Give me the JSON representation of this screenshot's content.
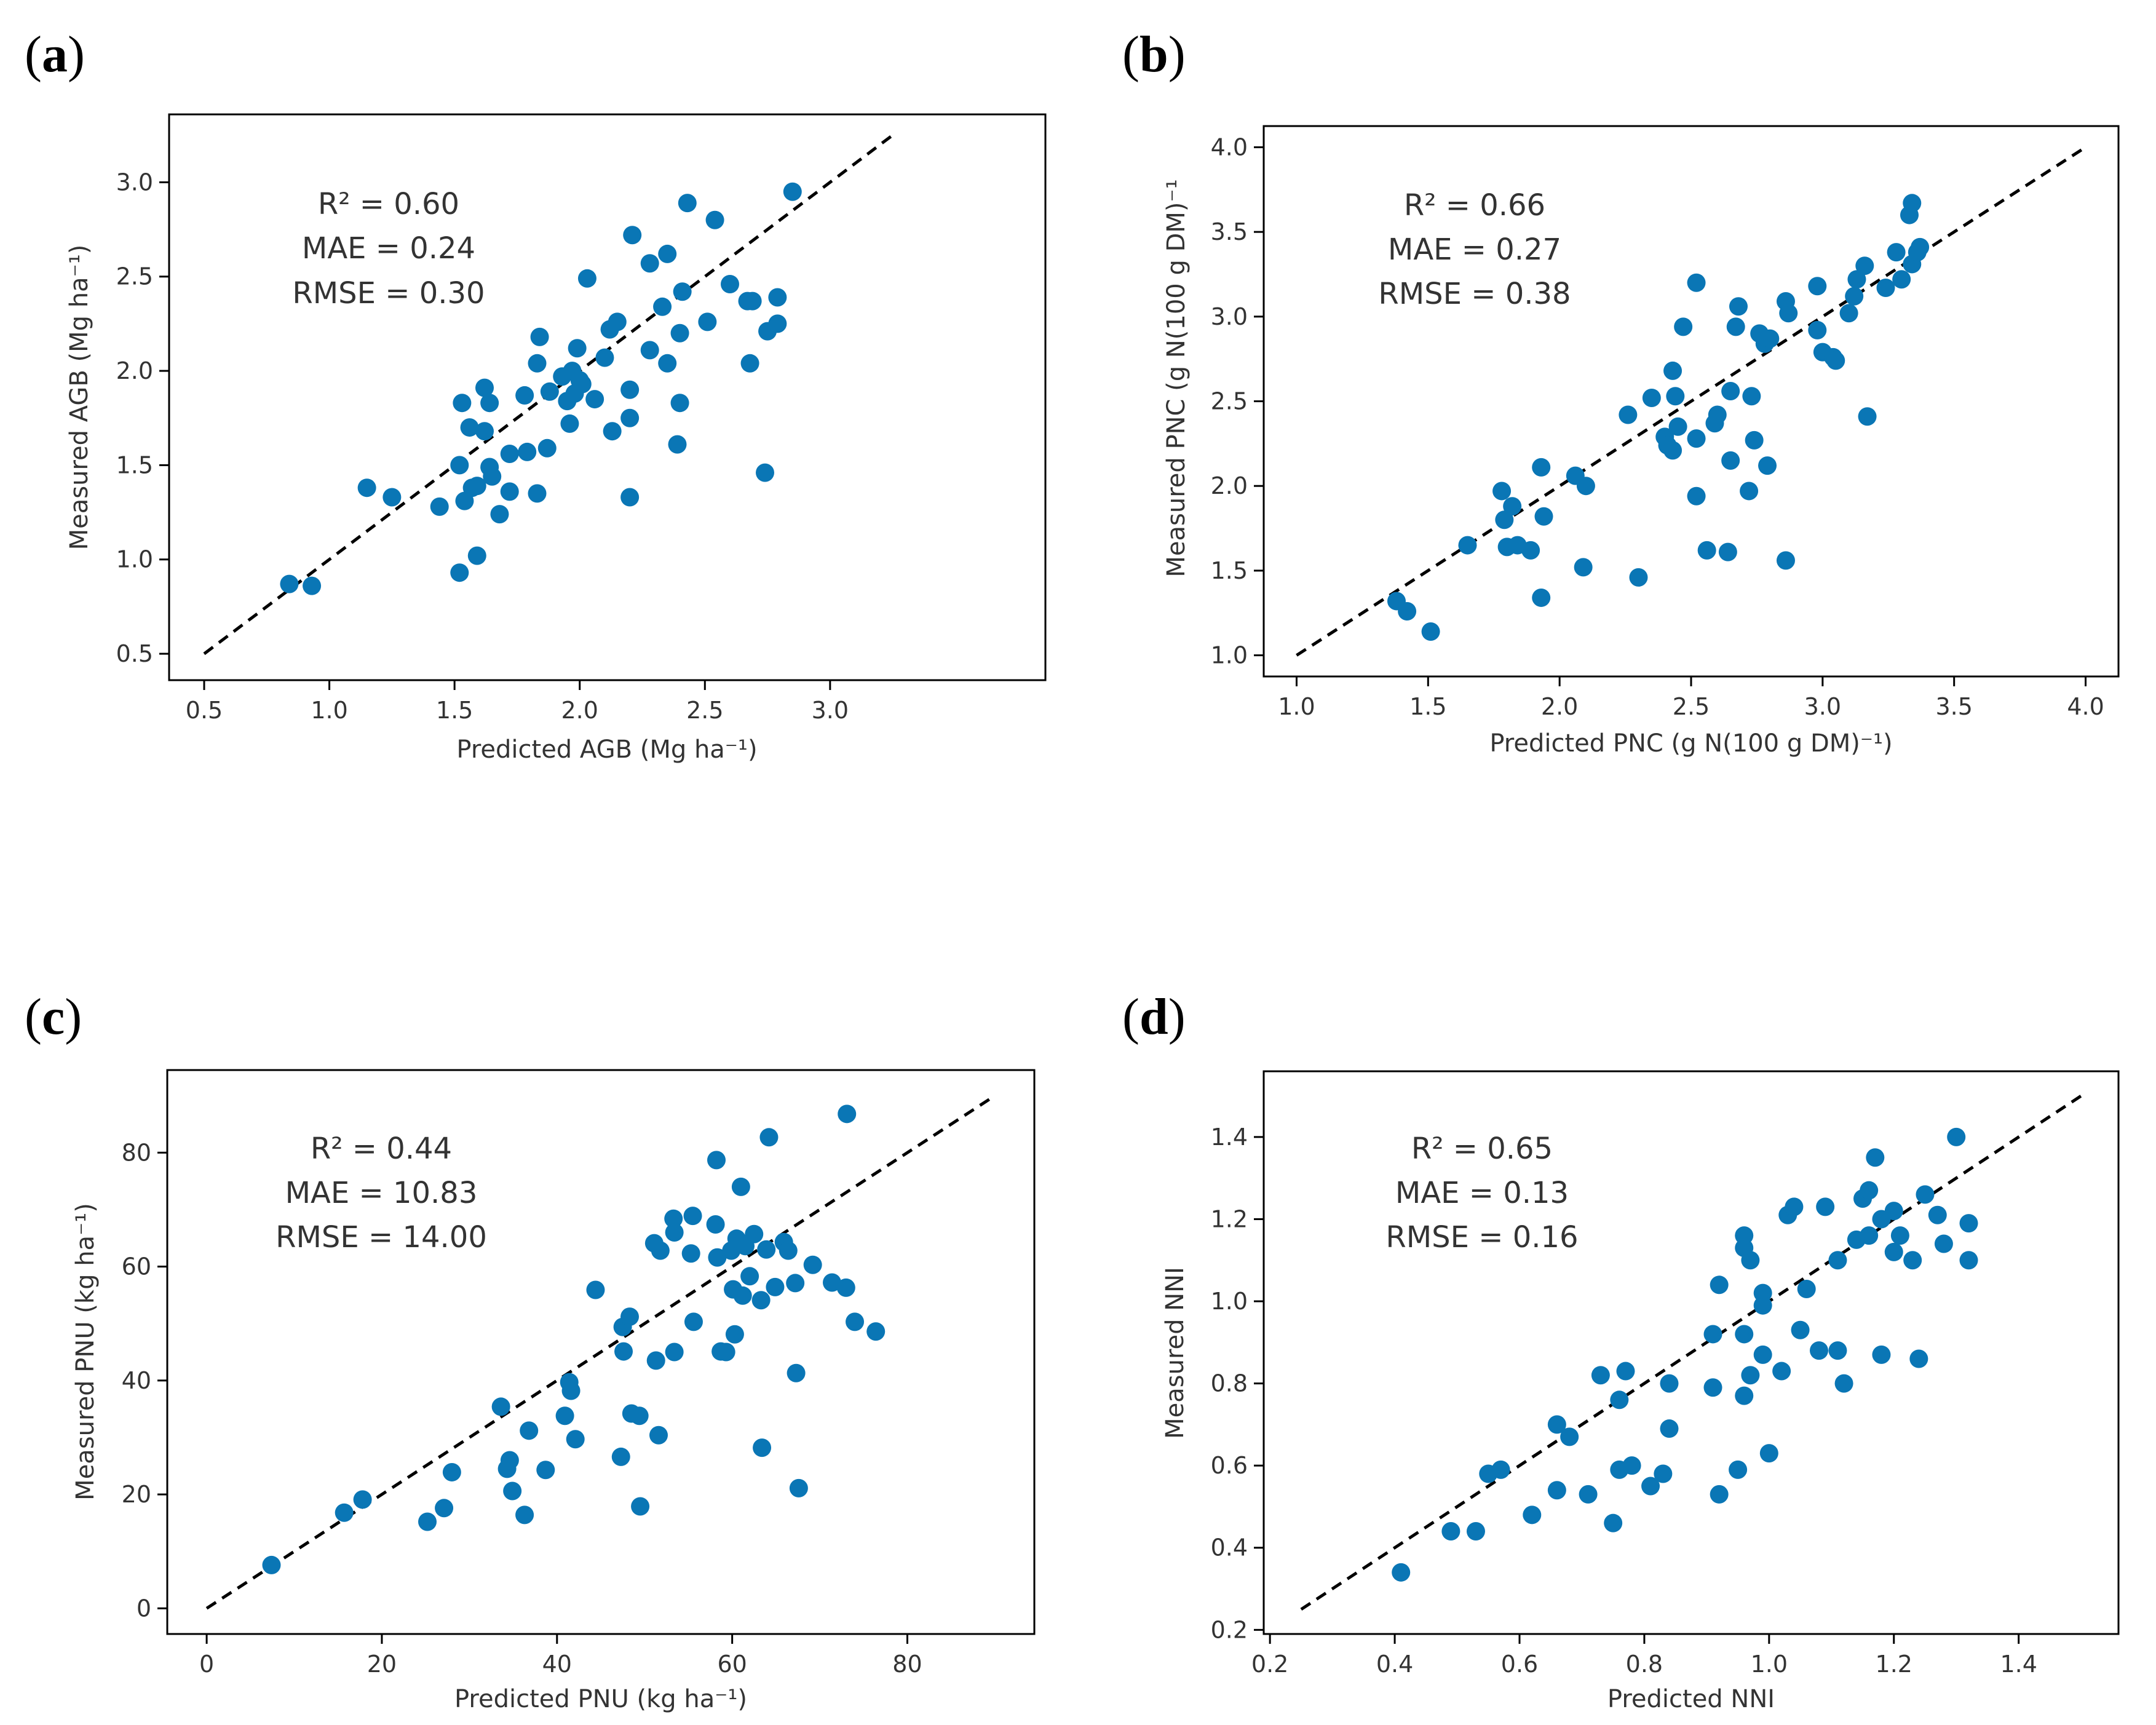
{
  "figure": {
    "panel_labels": [
      {
        "open": "(",
        "letter": "a",
        "close": ")"
      },
      {
        "open": "(",
        "letter": "b",
        "close": ")"
      },
      {
        "open": "(",
        "letter": "c",
        "close": ")"
      },
      {
        "open": "(",
        "letter": "d",
        "close": ")"
      }
    ]
  },
  "colors": {
    "point": "#0a76b5",
    "axis": "#000000",
    "line": "#000000"
  },
  "chart_data": [
    {
      "type": "scatter",
      "xlabel": "Predicted AGB (Mg ha⁻¹)",
      "ylabel": "Measured AGB (Mg ha⁻¹)",
      "xlim": [
        0.36,
        3.86
      ],
      "ylim": [
        0.36,
        3.36
      ],
      "xticks": [
        0.5,
        1.0,
        1.5,
        2.0,
        2.5,
        3.0
      ],
      "yticks": [
        0.5,
        1.0,
        1.5,
        2.0,
        2.5,
        3.0
      ],
      "tick_decimals": 1,
      "reference_line": [
        [
          0.5,
          0.5
        ],
        [
          3.25,
          3.25
        ]
      ],
      "stats": [
        "R² =  0.60",
        "MAE = 0.24",
        "RMSE = 0.30"
      ],
      "points": [
        [
          0.84,
          0.87
        ],
        [
          0.93,
          0.86
        ],
        [
          1.15,
          1.38
        ],
        [
          1.25,
          1.33
        ],
        [
          1.44,
          1.28
        ],
        [
          1.52,
          0.93
        ],
        [
          1.52,
          1.5
        ],
        [
          1.53,
          1.83
        ],
        [
          1.54,
          1.31
        ],
        [
          1.56,
          1.7
        ],
        [
          1.57,
          1.38
        ],
        [
          1.59,
          1.39
        ],
        [
          1.59,
          1.02
        ],
        [
          1.62,
          1.91
        ],
        [
          1.62,
          1.68
        ],
        [
          1.64,
          1.83
        ],
        [
          1.64,
          1.49
        ],
        [
          1.65,
          1.44
        ],
        [
          1.68,
          1.24
        ],
        [
          1.72,
          1.36
        ],
        [
          1.72,
          1.56
        ],
        [
          1.78,
          1.87
        ],
        [
          1.79,
          1.57
        ],
        [
          1.83,
          1.35
        ],
        [
          1.83,
          2.04
        ],
        [
          1.84,
          2.18
        ],
        [
          1.87,
          1.59
        ],
        [
          1.88,
          1.89
        ],
        [
          1.93,
          1.97
        ],
        [
          1.95,
          1.84
        ],
        [
          1.96,
          1.72
        ],
        [
          1.97,
          2.0
        ],
        [
          1.98,
          1.88
        ],
        [
          1.99,
          2.12
        ],
        [
          2.0,
          1.95
        ],
        [
          2.01,
          1.93
        ],
        [
          2.03,
          2.49
        ],
        [
          2.06,
          1.85
        ],
        [
          2.1,
          2.07
        ],
        [
          2.12,
          2.22
        ],
        [
          2.13,
          1.68
        ],
        [
          2.15,
          2.26
        ],
        [
          2.2,
          1.33
        ],
        [
          2.2,
          1.9
        ],
        [
          2.2,
          1.75
        ],
        [
          2.21,
          2.72
        ],
        [
          2.28,
          2.11
        ],
        [
          2.28,
          2.57
        ],
        [
          2.33,
          2.34
        ],
        [
          2.35,
          2.04
        ],
        [
          2.35,
          2.62
        ],
        [
          2.39,
          1.61
        ],
        [
          2.4,
          2.2
        ],
        [
          2.4,
          1.83
        ],
        [
          2.41,
          2.42
        ],
        [
          2.43,
          2.89
        ],
        [
          2.51,
          2.26
        ],
        [
          2.54,
          2.8
        ],
        [
          2.6,
          2.46
        ],
        [
          2.67,
          2.37
        ],
        [
          2.68,
          2.04
        ],
        [
          2.69,
          2.37
        ],
        [
          2.74,
          1.46
        ],
        [
          2.75,
          2.21
        ],
        [
          2.79,
          2.25
        ],
        [
          2.79,
          2.39
        ],
        [
          2.85,
          2.95
        ]
      ]
    },
    {
      "type": "scatter",
      "xlabel": "Predicted PNC (g N(100 g DM)⁻¹)",
      "ylabel": "Measured PNC (g N(100 g DM)⁻¹",
      "xlim": [
        0.875,
        4.125
      ],
      "ylim": [
        0.875,
        4.125
      ],
      "xticks": [
        1.0,
        1.5,
        2.0,
        2.5,
        3.0,
        3.5,
        4.0
      ],
      "yticks": [
        1.0,
        1.5,
        2.0,
        2.5,
        3.0,
        3.5,
        4.0
      ],
      "tick_decimals": 1,
      "reference_line": [
        [
          1.0,
          1.0
        ],
        [
          4.0,
          4.0
        ]
      ],
      "stats": [
        "R² = 0.66",
        "MAE = 0.27",
        "RMSE = 0.38"
      ],
      "points": [
        [
          1.38,
          1.32
        ],
        [
          1.42,
          1.26
        ],
        [
          1.51,
          1.14
        ],
        [
          1.65,
          1.65
        ],
        [
          1.78,
          1.97
        ],
        [
          1.79,
          1.8
        ],
        [
          1.8,
          1.64
        ],
        [
          1.82,
          1.88
        ],
        [
          1.84,
          1.65
        ],
        [
          1.89,
          1.62
        ],
        [
          1.93,
          2.11
        ],
        [
          1.93,
          1.34
        ],
        [
          1.94,
          1.82
        ],
        [
          2.06,
          2.06
        ],
        [
          2.09,
          1.52
        ],
        [
          2.1,
          2.0
        ],
        [
          2.26,
          2.42
        ],
        [
          2.3,
          1.46
        ],
        [
          2.35,
          2.52
        ],
        [
          2.4,
          2.29
        ],
        [
          2.41,
          2.24
        ],
        [
          2.43,
          2.68
        ],
        [
          2.43,
          2.21
        ],
        [
          2.44,
          2.53
        ],
        [
          2.45,
          2.35
        ],
        [
          2.47,
          2.94
        ],
        [
          2.52,
          3.2
        ],
        [
          2.52,
          2.28
        ],
        [
          2.52,
          1.94
        ],
        [
          2.56,
          1.62
        ],
        [
          2.59,
          2.37
        ],
        [
          2.6,
          2.42
        ],
        [
          2.64,
          1.61
        ],
        [
          2.65,
          2.56
        ],
        [
          2.65,
          2.15
        ],
        [
          2.67,
          2.94
        ],
        [
          2.68,
          3.06
        ],
        [
          2.72,
          1.97
        ],
        [
          2.73,
          2.53
        ],
        [
          2.74,
          2.27
        ],
        [
          2.76,
          2.9
        ],
        [
          2.78,
          2.84
        ],
        [
          2.79,
          2.12
        ],
        [
          2.8,
          2.87
        ],
        [
          2.86,
          1.56
        ],
        [
          2.86,
          3.09
        ],
        [
          2.87,
          3.02
        ],
        [
          2.98,
          3.18
        ],
        [
          2.98,
          2.92
        ],
        [
          3.0,
          2.79
        ],
        [
          3.04,
          2.76
        ],
        [
          3.05,
          2.74
        ],
        [
          3.1,
          3.02
        ],
        [
          3.12,
          3.12
        ],
        [
          3.13,
          3.22
        ],
        [
          3.16,
          3.3
        ],
        [
          3.17,
          2.41
        ],
        [
          3.24,
          3.17
        ],
        [
          3.28,
          3.38
        ],
        [
          3.3,
          3.22
        ],
        [
          3.33,
          3.6
        ],
        [
          3.34,
          3.67
        ],
        [
          3.34,
          3.31
        ],
        [
          3.36,
          3.38
        ],
        [
          3.37,
          3.41
        ]
      ]
    },
    {
      "type": "scatter",
      "xlabel": "Predicted PNU (kg ha⁻¹)",
      "ylabel": "Measured PNU (kg ha⁻¹)",
      "xlim": [
        -4.5,
        94.5
      ],
      "ylim": [
        -4.5,
        94.5
      ],
      "xticks": [
        0,
        20,
        40,
        60,
        80
      ],
      "yticks": [
        0,
        20,
        40,
        60,
        80
      ],
      "tick_decimals": 0,
      "reference_line": [
        [
          0,
          0
        ],
        [
          90,
          90
        ]
      ],
      "stats": [
        "R² = 0.44",
        "MAE = 10.83",
        "RMSE = 14.00"
      ],
      "points": [
        [
          7.4,
          7.6
        ],
        [
          15.7,
          16.8
        ],
        [
          17.8,
          19.1
        ],
        [
          25.2,
          15.2
        ],
        [
          27.1,
          17.6
        ],
        [
          28.0,
          23.9
        ],
        [
          33.6,
          35.4
        ],
        [
          34.3,
          24.5
        ],
        [
          34.6,
          26.0
        ],
        [
          34.9,
          20.6
        ],
        [
          36.3,
          16.4
        ],
        [
          36.8,
          31.2
        ],
        [
          38.7,
          24.3
        ],
        [
          40.9,
          33.8
        ],
        [
          41.4,
          39.7
        ],
        [
          41.6,
          38.2
        ],
        [
          42.1,
          29.7
        ],
        [
          44.4,
          55.9
        ],
        [
          47.3,
          26.6
        ],
        [
          47.5,
          49.4
        ],
        [
          47.6,
          45.1
        ],
        [
          48.3,
          51.2
        ],
        [
          48.5,
          34.2
        ],
        [
          49.4,
          33.8
        ],
        [
          49.5,
          17.9
        ],
        [
          51.1,
          64.1
        ],
        [
          51.3,
          43.5
        ],
        [
          51.6,
          30.4
        ],
        [
          51.8,
          62.8
        ],
        [
          53.3,
          68.4
        ],
        [
          53.4,
          66.0
        ],
        [
          53.4,
          45.0
        ],
        [
          55.3,
          62.3
        ],
        [
          55.5,
          68.9
        ],
        [
          55.6,
          50.3
        ],
        [
          58.1,
          67.4
        ],
        [
          58.2,
          78.7
        ],
        [
          58.3,
          61.6
        ],
        [
          58.7,
          45.1
        ],
        [
          59.3,
          45.0
        ],
        [
          59.9,
          62.8
        ],
        [
          60.1,
          56.0
        ],
        [
          60.3,
          48.1
        ],
        [
          60.5,
          64.9
        ],
        [
          61.0,
          74.0
        ],
        [
          61.2,
          54.9
        ],
        [
          61.5,
          63.6
        ],
        [
          62.0,
          58.3
        ],
        [
          62.5,
          65.7
        ],
        [
          63.3,
          54.1
        ],
        [
          63.4,
          28.2
        ],
        [
          63.9,
          63.0
        ],
        [
          64.2,
          82.7
        ],
        [
          64.9,
          56.4
        ],
        [
          65.9,
          64.3
        ],
        [
          66.4,
          62.8
        ],
        [
          67.2,
          57.1
        ],
        [
          67.3,
          41.3
        ],
        [
          67.6,
          21.1
        ],
        [
          69.2,
          60.3
        ],
        [
          71.4,
          57.2
        ],
        [
          73.0,
          56.3
        ],
        [
          73.1,
          86.8
        ],
        [
          74.0,
          50.3
        ],
        [
          76.4,
          48.6
        ]
      ]
    },
    {
      "type": "scatter",
      "xlabel": "Predicted NNI",
      "ylabel": "Measured NNI",
      "xlim": [
        0.19,
        1.56
      ],
      "ylim": [
        0.19,
        1.56
      ],
      "xticks": [
        0.2,
        0.4,
        0.6,
        0.8,
        1.0,
        1.2,
        1.4
      ],
      "yticks": [
        0.2,
        0.4,
        0.6,
        0.8,
        1.0,
        1.2,
        1.4
      ],
      "tick_decimals": 1,
      "reference_line": [
        [
          0.25,
          0.25
        ],
        [
          1.5,
          1.5
        ]
      ],
      "stats": [
        "R² = 0.65",
        "MAE = 0.13",
        "RMSE = 0.16"
      ],
      "points": [
        [
          0.41,
          0.34
        ],
        [
          0.49,
          0.44
        ],
        [
          0.53,
          0.44
        ],
        [
          0.55,
          0.58
        ],
        [
          0.57,
          0.59
        ],
        [
          0.62,
          0.48
        ],
        [
          0.66,
          0.7
        ],
        [
          0.66,
          0.54
        ],
        [
          0.68,
          0.67
        ],
        [
          0.71,
          0.53
        ],
        [
          0.73,
          0.82
        ],
        [
          0.75,
          0.46
        ],
        [
          0.76,
          0.59
        ],
        [
          0.76,
          0.76
        ],
        [
          0.77,
          0.83
        ],
        [
          0.78,
          0.6
        ],
        [
          0.81,
          0.55
        ],
        [
          0.83,
          0.58
        ],
        [
          0.84,
          0.69
        ],
        [
          0.84,
          0.8
        ],
        [
          0.91,
          0.79
        ],
        [
          0.91,
          0.92
        ],
        [
          0.92,
          1.04
        ],
        [
          0.92,
          0.53
        ],
        [
          0.95,
          0.59
        ],
        [
          0.96,
          1.13
        ],
        [
          0.96,
          1.16
        ],
        [
          0.96,
          0.92
        ],
        [
          0.96,
          0.77
        ],
        [
          0.97,
          1.1
        ],
        [
          0.97,
          0.82
        ],
        [
          0.99,
          1.02
        ],
        [
          0.99,
          0.87
        ],
        [
          0.99,
          0.99
        ],
        [
          1.0,
          0.63
        ],
        [
          1.02,
          0.83
        ],
        [
          1.03,
          1.21
        ],
        [
          1.04,
          1.23
        ],
        [
          1.05,
          0.93
        ],
        [
          1.06,
          1.03
        ],
        [
          1.08,
          0.88
        ],
        [
          1.09,
          1.23
        ],
        [
          1.11,
          0.88
        ],
        [
          1.11,
          1.1
        ],
        [
          1.12,
          0.8
        ],
        [
          1.14,
          1.15
        ],
        [
          1.15,
          1.25
        ],
        [
          1.16,
          1.27
        ],
        [
          1.16,
          1.16
        ],
        [
          1.17,
          1.35
        ],
        [
          1.18,
          0.87
        ],
        [
          1.18,
          1.2
        ],
        [
          1.2,
          1.22
        ],
        [
          1.2,
          1.12
        ],
        [
          1.21,
          1.16
        ],
        [
          1.23,
          1.1
        ],
        [
          1.24,
          0.86
        ],
        [
          1.25,
          1.26
        ],
        [
          1.27,
          1.21
        ],
        [
          1.28,
          1.14
        ],
        [
          1.3,
          1.4
        ],
        [
          1.32,
          1.19
        ],
        [
          1.32,
          1.1
        ]
      ]
    }
  ]
}
